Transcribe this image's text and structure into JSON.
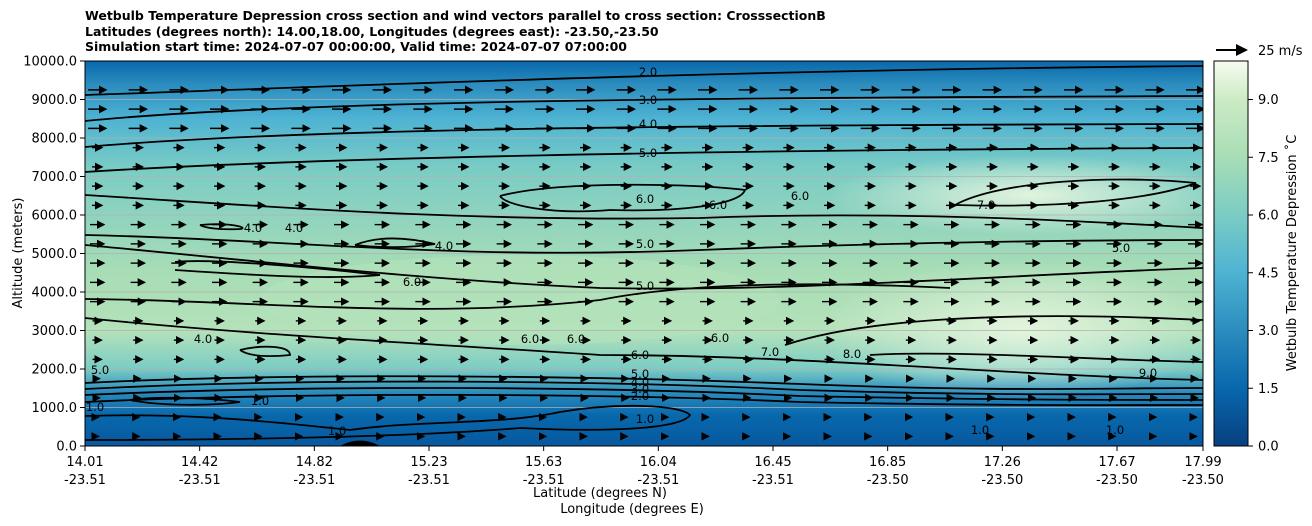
{
  "title_lines": [
    "Wetbulb Temperature Depression cross section and wind vectors parallel to cross section: CrosssectionB",
    "Latitudes (degrees north): 14.00,18.00, Longitudes (degrees east): -23.50,-23.50",
    "Simulation start time: 2024-07-07 00:00:00, Valid time: 2024-07-07 07:00:00"
  ],
  "wind_key_label": "25 m/s",
  "colors": {
    "low": "#08589e",
    "mid": "#4eb3d3",
    "high": "#f7fcf0",
    "contour": "#000000",
    "grid": "#b0b0b0"
  },
  "chart_data": {
    "type": "contourf",
    "ylabel": "Altitude (meters)",
    "xlabel_lines": [
      "Latitude (degrees N)",
      "Longitude (degrees E)"
    ],
    "colorbar_label": "Wetbulb Temperature Depression ˚C",
    "ylim": [
      0,
      10000
    ],
    "y_ticks": [
      "0.0",
      "1000.0",
      "2000.0",
      "3000.0",
      "4000.0",
      "5000.0",
      "6000.0",
      "7000.0",
      "8000.0",
      "9000.0",
      "10000.0"
    ],
    "x_ticks": [
      {
        "lat": "14.01",
        "lon": "-23.51"
      },
      {
        "lat": "14.42",
        "lon": "-23.51"
      },
      {
        "lat": "14.82",
        "lon": "-23.51"
      },
      {
        "lat": "15.23",
        "lon": "-23.51"
      },
      {
        "lat": "15.63",
        "lon": "-23.51"
      },
      {
        "lat": "16.04",
        "lon": "-23.51"
      },
      {
        "lat": "16.45",
        "lon": "-23.51"
      },
      {
        "lat": "16.85",
        "lon": "-23.50"
      },
      {
        "lat": "17.26",
        "lon": "-23.50"
      },
      {
        "lat": "17.67",
        "lon": "-23.50"
      },
      {
        "lat": "17.99",
        "lon": "-23.50"
      }
    ],
    "colorbar_range": [
      0,
      10
    ],
    "colorbar_ticks": [
      "0.0",
      "1.5",
      "3.0",
      "4.5",
      "6.0",
      "7.5",
      "9.0"
    ],
    "contour_labels": [
      "1.0",
      "2.0",
      "3.0",
      "4.0",
      "5.0",
      "6.0",
      "7.0",
      "8.0",
      "9.0"
    ],
    "approx_profile_altitudes": [
      0,
      1000,
      2000,
      3000,
      4000,
      5000,
      6000,
      7000,
      8000,
      9000,
      10000
    ],
    "approx_profile_south": [
      0.8,
      1.2,
      3.5,
      4.5,
      6.0,
      4.5,
      3.8,
      5.0,
      4.0,
      2.8,
      1.5
    ],
    "approx_profile_north": [
      0.8,
      1.5,
      8.5,
      8.5,
      6.0,
      5.0,
      7.0,
      5.5,
      4.0,
      2.8,
      1.5
    ],
    "grid": true
  }
}
